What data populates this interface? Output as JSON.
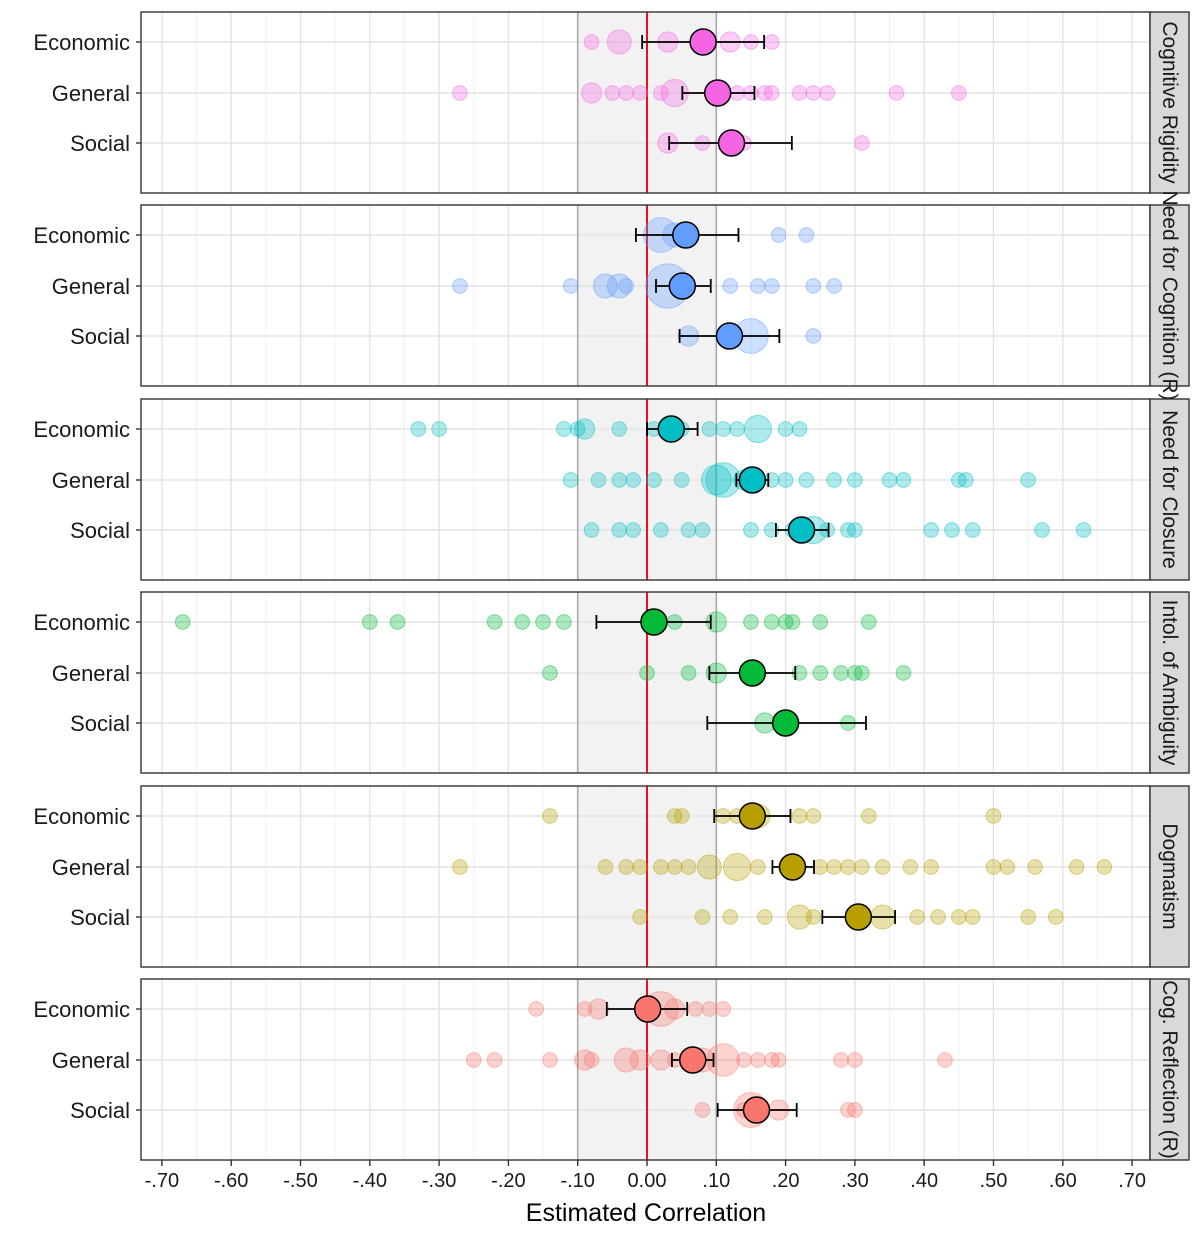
{
  "chart_data": {
    "type": "scatter",
    "subtype": "faceted-forest-plot",
    "xlabel": "Estimated Correlation",
    "xlim": [
      -0.72,
      0.73
    ],
    "xticks": [
      -0.7,
      -0.6,
      -0.5,
      -0.4,
      -0.3,
      -0.2,
      -0.1,
      0.0,
      0.1,
      0.2,
      0.3,
      0.4,
      0.5,
      0.6,
      0.7
    ],
    "xtick_labels": [
      "-.70",
      "-.60",
      "-.50",
      "-.40",
      "-.30",
      "-.20",
      "-.10",
      "0.00",
      ".10",
      ".20",
      ".30",
      ".40",
      ".50",
      ".60",
      ".70"
    ],
    "reference_line": 0.0,
    "reference_line_color": "#e8111f",
    "null_band": [
      -0.1,
      0.1
    ],
    "categories": [
      "Economic",
      "General",
      "Social"
    ],
    "facets": [
      {
        "label": "Cognitive Rigidity",
        "color": "#f564e3",
        "series": [
          {
            "name": "Economic",
            "estimate": 0.081,
            "ci": [
              -0.007,
              0.169
            ],
            "studies": [
              [
                -0.08,
                1
              ],
              [
                -0.04,
                3
              ],
              [
                0.03,
                2
              ],
              [
                0.12,
                2
              ],
              [
                0.15,
                1
              ],
              [
                0.18,
                1
              ]
            ]
          },
          {
            "name": "General",
            "estimate": 0.102,
            "ci": [
              0.051,
              0.155
            ],
            "studies": [
              [
                -0.27,
                1
              ],
              [
                -0.08,
                2
              ],
              [
                -0.05,
                1
              ],
              [
                -0.03,
                1
              ],
              [
                -0.01,
                1
              ],
              [
                0.02,
                1
              ],
              [
                0.04,
                4
              ],
              [
                0.11,
                1
              ],
              [
                0.13,
                1
              ],
              [
                0.15,
                1
              ],
              [
                0.17,
                1
              ],
              [
                0.18,
                1
              ],
              [
                0.22,
                1
              ],
              [
                0.24,
                1
              ],
              [
                0.26,
                1
              ],
              [
                0.36,
                1
              ],
              [
                0.45,
                1
              ]
            ]
          },
          {
            "name": "Social",
            "estimate": 0.122,
            "ci": [
              0.032,
              0.209
            ],
            "studies": [
              [
                0.03,
                2
              ],
              [
                0.08,
                1
              ],
              [
                0.14,
                1
              ],
              [
                0.31,
                1
              ]
            ]
          }
        ]
      },
      {
        "label": "Need for Cognition (R)",
        "color": "#619cff",
        "series": [
          {
            "name": "Economic",
            "estimate": 0.056,
            "ci": [
              -0.016,
              0.132
            ],
            "studies": [
              [
                0.02,
                7
              ],
              [
                0.04,
                3
              ],
              [
                0.19,
                1
              ],
              [
                0.23,
                1
              ]
            ]
          },
          {
            "name": "General",
            "estimate": 0.051,
            "ci": [
              0.013,
              0.092
            ],
            "studies": [
              [
                -0.27,
                1
              ],
              [
                -0.11,
                1
              ],
              [
                -0.06,
                3
              ],
              [
                -0.04,
                3
              ],
              [
                -0.03,
                1
              ],
              [
                0.03,
                12
              ],
              [
                0.12,
                1
              ],
              [
                0.16,
                1
              ],
              [
                0.18,
                1
              ],
              [
                0.24,
                1
              ],
              [
                0.27,
                1
              ]
            ]
          },
          {
            "name": "Social",
            "estimate": 0.119,
            "ci": [
              0.047,
              0.191
            ],
            "studies": [
              [
                0.06,
                2
              ],
              [
                0.15,
                7
              ],
              [
                0.24,
                1
              ]
            ]
          }
        ]
      },
      {
        "label": "Need for Closure",
        "color": "#00bfc4",
        "series": [
          {
            "name": "Economic",
            "estimate": 0.035,
            "ci": [
              0.0,
              0.073
            ],
            "studies": [
              [
                -0.33,
                1
              ],
              [
                -0.3,
                1
              ],
              [
                -0.12,
                1
              ],
              [
                -0.1,
                1
              ],
              [
                -0.09,
                2
              ],
              [
                -0.04,
                1
              ],
              [
                0.01,
                1
              ],
              [
                0.05,
                1
              ],
              [
                0.09,
                1
              ],
              [
                0.11,
                1
              ],
              [
                0.13,
                1
              ],
              [
                0.16,
                4
              ],
              [
                0.2,
                1
              ],
              [
                0.22,
                1
              ]
            ]
          },
          {
            "name": "General",
            "estimate": 0.152,
            "ci": [
              0.129,
              0.175
            ],
            "studies": [
              [
                -0.11,
                1
              ],
              [
                -0.07,
                1
              ],
              [
                -0.04,
                1
              ],
              [
                -0.02,
                1
              ],
              [
                0.01,
                1
              ],
              [
                0.05,
                1
              ],
              [
                0.1,
                5
              ],
              [
                0.11,
                7
              ],
              [
                0.14,
                2
              ],
              [
                0.18,
                1
              ],
              [
                0.2,
                1
              ],
              [
                0.23,
                1
              ],
              [
                0.27,
                1
              ],
              [
                0.3,
                1
              ],
              [
                0.35,
                1
              ],
              [
                0.37,
                1
              ],
              [
                0.45,
                1
              ],
              [
                0.46,
                1
              ],
              [
                0.55,
                1
              ]
            ]
          },
          {
            "name": "Social",
            "estimate": 0.223,
            "ci": [
              0.186,
              0.262
            ],
            "studies": [
              [
                -0.08,
                1
              ],
              [
                -0.04,
                1
              ],
              [
                -0.02,
                1
              ],
              [
                0.02,
                1
              ],
              [
                0.06,
                1
              ],
              [
                0.08,
                1
              ],
              [
                0.15,
                1
              ],
              [
                0.18,
                1
              ],
              [
                0.21,
                1
              ],
              [
                0.24,
                4
              ],
              [
                0.26,
                1
              ],
              [
                0.29,
                1
              ],
              [
                0.3,
                1
              ],
              [
                0.41,
                1
              ],
              [
                0.44,
                1
              ],
              [
                0.47,
                1
              ],
              [
                0.57,
                1
              ],
              [
                0.63,
                1
              ]
            ]
          }
        ]
      },
      {
        "label": "Intol. of Ambiguity",
        "color": "#00ba38",
        "series": [
          {
            "name": "Economic",
            "estimate": 0.01,
            "ci": [
              -0.073,
              0.092
            ],
            "studies": [
              [
                -0.67,
                1
              ],
              [
                -0.4,
                1
              ],
              [
                -0.36,
                1
              ],
              [
                -0.22,
                1
              ],
              [
                -0.18,
                1
              ],
              [
                -0.15,
                1
              ],
              [
                -0.12,
                1
              ],
              [
                0.04,
                1
              ],
              [
                0.1,
                2
              ],
              [
                0.15,
                1
              ],
              [
                0.18,
                1
              ],
              [
                0.2,
                1
              ],
              [
                0.21,
                1
              ],
              [
                0.25,
                1
              ],
              [
                0.32,
                1
              ]
            ]
          },
          {
            "name": "General",
            "estimate": 0.152,
            "ci": [
              0.09,
              0.214
            ],
            "studies": [
              [
                -0.14,
                1
              ],
              [
                0.0,
                1
              ],
              [
                0.06,
                1
              ],
              [
                0.1,
                2
              ],
              [
                0.22,
                1
              ],
              [
                0.25,
                1
              ],
              [
                0.28,
                1
              ],
              [
                0.3,
                1
              ],
              [
                0.31,
                1
              ],
              [
                0.37,
                1
              ]
            ]
          },
          {
            "name": "Social",
            "estimate": 0.2,
            "ci": [
              0.087,
              0.316
            ],
            "studies": [
              [
                0.17,
                2
              ],
              [
                0.29,
                1
              ]
            ]
          }
        ]
      },
      {
        "label": "Dogmatism",
        "color": "#b79f00",
        "series": [
          {
            "name": "Economic",
            "estimate": 0.152,
            "ci": [
              0.097,
              0.207
            ],
            "studies": [
              [
                -0.14,
                1
              ],
              [
                0.04,
                1
              ],
              [
                0.05,
                1
              ],
              [
                0.11,
                1
              ],
              [
                0.13,
                1
              ],
              [
                0.16,
                3
              ],
              [
                0.22,
                1
              ],
              [
                0.24,
                1
              ],
              [
                0.32,
                1
              ],
              [
                0.5,
                1
              ]
            ]
          },
          {
            "name": "General",
            "estimate": 0.21,
            "ci": [
              0.181,
              0.241
            ],
            "studies": [
              [
                -0.27,
                1
              ],
              [
                -0.06,
                1
              ],
              [
                -0.03,
                1
              ],
              [
                -0.01,
                1
              ],
              [
                0.02,
                1
              ],
              [
                0.04,
                1
              ],
              [
                0.06,
                1
              ],
              [
                0.09,
                3
              ],
              [
                0.13,
                4
              ],
              [
                0.16,
                1
              ],
              [
                0.2,
                1
              ],
              [
                0.25,
                1
              ],
              [
                0.27,
                1
              ],
              [
                0.29,
                1
              ],
              [
                0.31,
                1
              ],
              [
                0.34,
                1
              ],
              [
                0.38,
                1
              ],
              [
                0.41,
                1
              ],
              [
                0.5,
                1
              ],
              [
                0.52,
                1
              ],
              [
                0.56,
                1
              ],
              [
                0.62,
                1
              ],
              [
                0.66,
                1
              ]
            ]
          },
          {
            "name": "Social",
            "estimate": 0.305,
            "ci": [
              0.253,
              0.358
            ],
            "studies": [
              [
                -0.01,
                1
              ],
              [
                0.08,
                1
              ],
              [
                0.12,
                1
              ],
              [
                0.17,
                1
              ],
              [
                0.22,
                3
              ],
              [
                0.24,
                1
              ],
              [
                0.34,
                3
              ],
              [
                0.39,
                1
              ],
              [
                0.42,
                1
              ],
              [
                0.45,
                1
              ],
              [
                0.47,
                1
              ],
              [
                0.55,
                1
              ],
              [
                0.59,
                1
              ]
            ]
          }
        ]
      },
      {
        "label": "Cog. Reflection (R)",
        "color": "#f8766d",
        "series": [
          {
            "name": "Economic",
            "estimate": 0.001,
            "ci": [
              -0.058,
              0.058
            ],
            "studies": [
              [
                -0.16,
                1
              ],
              [
                -0.09,
                1
              ],
              [
                -0.07,
                2
              ],
              [
                0.02,
                7
              ],
              [
                0.04,
                2
              ],
              [
                0.07,
                1
              ],
              [
                0.09,
                1
              ],
              [
                0.11,
                1
              ]
            ]
          },
          {
            "name": "General",
            "estimate": 0.066,
            "ci": [
              0.036,
              0.096
            ],
            "studies": [
              [
                -0.25,
                1
              ],
              [
                -0.22,
                1
              ],
              [
                -0.14,
                1
              ],
              [
                -0.09,
                2
              ],
              [
                -0.08,
                1
              ],
              [
                -0.03,
                3
              ],
              [
                -0.01,
                2
              ],
              [
                0.02,
                2
              ],
              [
                0.04,
                1
              ],
              [
                0.08,
                3
              ],
              [
                0.11,
                6
              ],
              [
                0.14,
                1
              ],
              [
                0.16,
                1
              ],
              [
                0.18,
                1
              ],
              [
                0.19,
                1
              ],
              [
                0.28,
                1
              ],
              [
                0.3,
                1
              ],
              [
                0.43,
                1
              ]
            ]
          },
          {
            "name": "Social",
            "estimate": 0.158,
            "ci": [
              0.102,
              0.216
            ],
            "studies": [
              [
                0.08,
                1
              ],
              [
                0.14,
                1
              ],
              [
                0.15,
                7
              ],
              [
                0.19,
                2
              ],
              [
                0.29,
                1
              ],
              [
                0.3,
                1
              ]
            ]
          }
        ]
      }
    ]
  }
}
